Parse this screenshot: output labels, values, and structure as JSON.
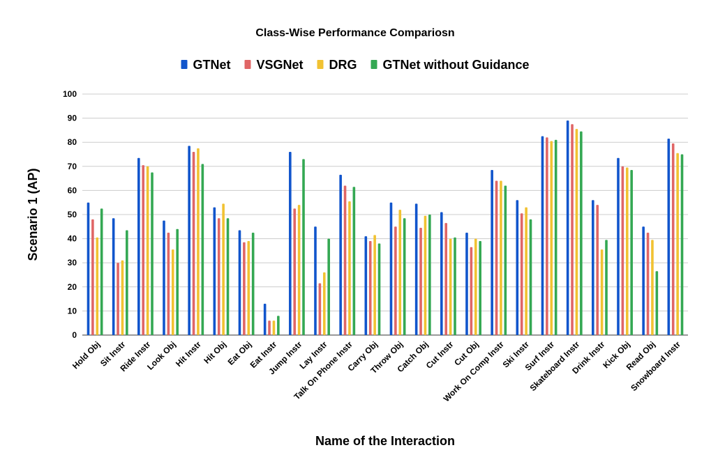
{
  "chart_data": {
    "type": "bar",
    "title": "Class-Wise Performance Compariosn",
    "xlabel": "Name of the Interaction",
    "ylabel": "Scenario 1 (AP)",
    "ylim": [
      0,
      100
    ],
    "yticks": [
      0,
      10,
      20,
      30,
      40,
      50,
      60,
      70,
      80,
      90,
      100
    ],
    "grid": true,
    "legend_position": "top-center",
    "categories": [
      "Hold Obj",
      "Sit Instr",
      "Ride Instr",
      "Look Obj",
      "Hit Instr",
      "Hit Obj",
      "Eat Obj",
      "Eat Instr",
      "Jump Instr",
      "Lay Instr",
      "Talk On Phone Instr",
      "Carry Obj",
      "Throw Obj",
      "Catch Obj",
      "Cut Instr",
      "Cut Obj",
      "Work On Comp Instr",
      "Ski Instr",
      "Surf Instr",
      "Skateboard Instr",
      "Drink Instr",
      "Kick Obj",
      "Read Obj",
      "Snowboard Instr"
    ],
    "series": [
      {
        "name": "GTNet",
        "color": "#1155cc",
        "values": [
          55,
          48.5,
          73.5,
          47.5,
          78.5,
          53,
          43.5,
          13,
          76,
          45,
          66.5,
          41,
          55,
          54.5,
          51,
          42.5,
          68.5,
          56,
          82.5,
          89,
          56,
          73.5,
          45,
          81.5
        ]
      },
      {
        "name": "VSGNet",
        "color": "#e06666",
        "values": [
          48,
          30,
          70.5,
          42.5,
          76,
          48.5,
          38.5,
          6,
          52.5,
          21.5,
          62,
          39,
          45,
          44.5,
          46.5,
          36.5,
          64,
          50.5,
          82,
          87.5,
          54,
          70,
          42.5,
          79.5
        ]
      },
      {
        "name": "DRG",
        "color": "#f1c232",
        "values": [
          40.5,
          31,
          70,
          35.5,
          77.5,
          54.5,
          39,
          6,
          54,
          26,
          55.5,
          41.5,
          52,
          49.5,
          40,
          40,
          64,
          53,
          80.5,
          85.5,
          35.5,
          69.5,
          39.5,
          75.5
        ]
      },
      {
        "name": "GTNet without Guidance",
        "color": "#34a853",
        "values": [
          52.5,
          43.5,
          67.5,
          44,
          71,
          48.5,
          42.5,
          8,
          73,
          40,
          61.5,
          38,
          48.5,
          50,
          40.5,
          39,
          62,
          48,
          81,
          84.5,
          39.5,
          68.5,
          26.5,
          75
        ]
      }
    ]
  }
}
